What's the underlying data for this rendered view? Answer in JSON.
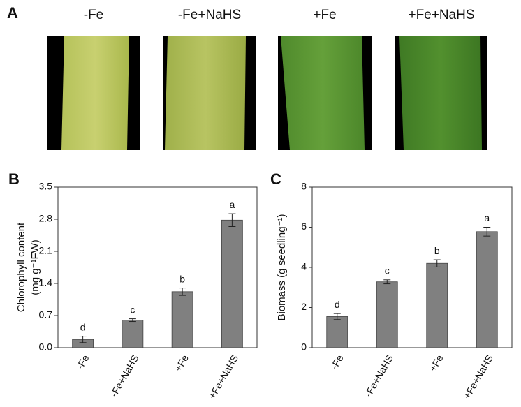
{
  "photo_panel": {
    "label": "A",
    "titles": [
      "-Fe",
      "-Fe+NaHS",
      "+Fe",
      "+Fe+NaHS"
    ]
  },
  "chart_data": [
    {
      "type": "bar",
      "panel_label": "B",
      "ylabel": [
        "Chlorophyll content",
        "(mg g⁻¹FW)"
      ],
      "categories": [
        "-Fe",
        "-Fe+NaHS",
        "+Fe",
        "+Fe+NaHS"
      ],
      "values": [
        0.18,
        0.6,
        1.22,
        2.78
      ],
      "errors": [
        0.07,
        0.03,
        0.08,
        0.14
      ],
      "letters": [
        "d",
        "c",
        "b",
        "a"
      ],
      "color": "#808080",
      "ylim": [
        0,
        3.5
      ],
      "yticks": [
        {
          "value": 0,
          "label": "0.0"
        },
        0.7,
        1.4,
        2.1,
        2.8,
        3.5
      ]
    },
    {
      "type": "bar",
      "panel_label": "C",
      "ylabel": [
        "Biomass (g seedling⁻¹)"
      ],
      "categories": [
        "-Fe",
        "-Fe+NaHS",
        "+Fe",
        "+Fe+NaHS"
      ],
      "values": [
        1.55,
        3.28,
        4.2,
        5.78
      ],
      "errors": [
        0.15,
        0.1,
        0.18,
        0.22
      ],
      "letters": [
        "d",
        "c",
        "b",
        "a"
      ],
      "color": "#808080",
      "ylim": [
        0,
        8
      ],
      "yticks": [
        0,
        2,
        4,
        6,
        8
      ]
    }
  ]
}
